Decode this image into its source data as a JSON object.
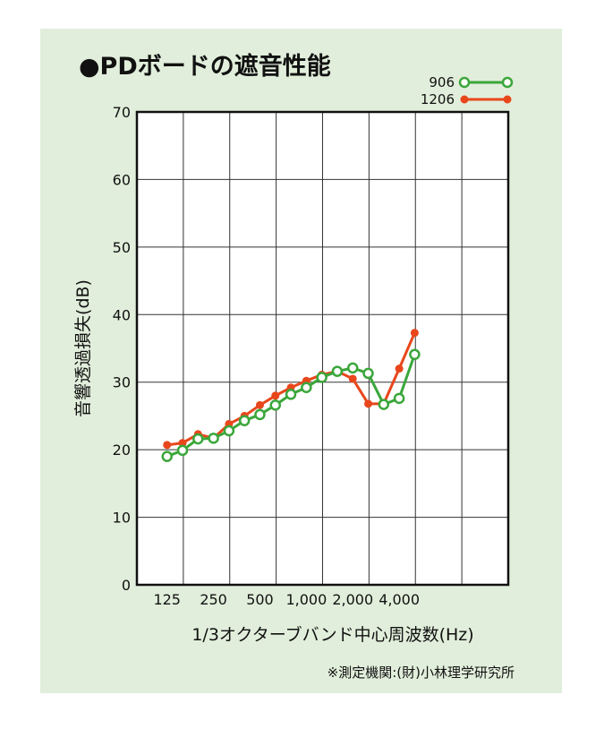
{
  "title": "●PDボードの遮音性能",
  "source_note": "※測定機関:(財)小林理学研究所",
  "colors": {
    "panel_bg": "#e1eedb",
    "series_906": "#3aa63a",
    "series_1206": "#e8471c"
  },
  "chart_data": {
    "type": "line",
    "title": "●PDボードの遮音性能",
    "xlabel": "1/3オクターブバンド中心周波数(Hz)",
    "ylabel": "音響透過損失(dB)",
    "ylim": [
      0,
      70
    ],
    "yticks": [
      "0",
      "10",
      "20",
      "30",
      "40",
      "50",
      "60",
      "70"
    ],
    "x": [
      125,
      160,
      200,
      250,
      315,
      400,
      500,
      630,
      800,
      1000,
      1250,
      1600,
      2000,
      2500,
      3150,
      4000,
      5000
    ],
    "xtick_labels": [
      "125",
      "250",
      "500",
      "1,000",
      "2,000",
      "4,000"
    ],
    "grid": true,
    "legend": "top-right",
    "series": [
      {
        "name": "906",
        "marker": "open-circle",
        "color": "#3aa63a",
        "values": [
          19.0,
          19.9,
          21.6,
          21.7,
          22.8,
          24.3,
          25.2,
          26.6,
          28.2,
          29.2,
          30.7,
          31.6,
          32.1,
          31.3,
          26.7,
          27.6,
          34.1
        ]
      },
      {
        "name": "1206",
        "marker": "filled-circle",
        "color": "#e8471c",
        "values": [
          20.7,
          21.0,
          22.3,
          21.7,
          23.8,
          25.0,
          26.6,
          28.0,
          29.2,
          30.2,
          31.1,
          31.6,
          30.5,
          26.8,
          26.8,
          32.0,
          37.3
        ]
      }
    ]
  }
}
